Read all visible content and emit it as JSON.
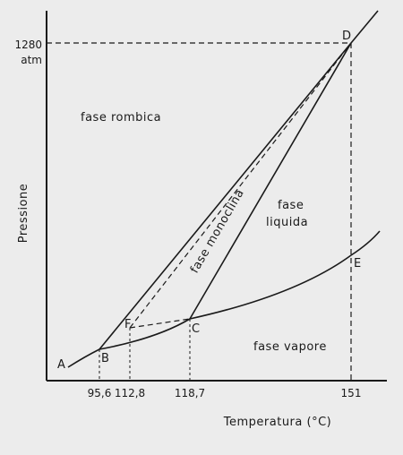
{
  "diagram": {
    "title": "",
    "x_axis_label": "Temperatura (°C)",
    "y_axis_label": "Pressione",
    "y_tick_value": "1280",
    "y_tick_unit": "atm",
    "x_ticks": [
      "95,6",
      "112,8",
      "118,7",
      "151"
    ],
    "regions": {
      "rhombic": "fase rombica",
      "monoclinic": "fase monoclina",
      "liquid_line1": "fase",
      "liquid_line2": "liquida",
      "vapor": "fase vapore"
    },
    "points": [
      "A",
      "B",
      "C",
      "D",
      "E",
      "F"
    ]
  }
}
